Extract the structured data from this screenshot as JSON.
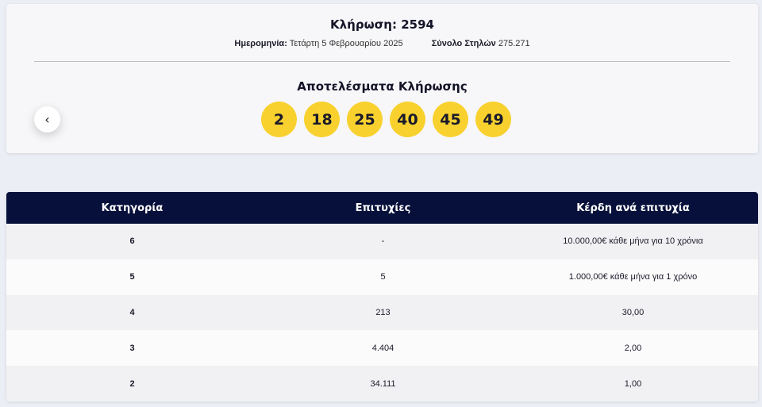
{
  "draw": {
    "title": "Κλήρωση: 2594",
    "date_label": "Ημερομηνία:",
    "date_value": "Τετάρτη 5 Φεβρουαρίου 2025",
    "columns_label": "Σύνολο Στηλών",
    "columns_value": "275.271",
    "results_title": "Αποτελέσματα Κλήρωσης",
    "prev_icon": "‹",
    "numbers": [
      "2",
      "18",
      "25",
      "40",
      "45",
      "49"
    ],
    "ball_color": "#f9d12e"
  },
  "table": {
    "headers": [
      "Κατηγορία",
      "Επιτυχίες",
      "Κέρδη ανά επιτυχία"
    ],
    "header_color": "#06103a",
    "rows": [
      [
        "6",
        "-",
        "10.000,00€ κάθε μήνα για 10 χρόνια"
      ],
      [
        "5",
        "5",
        "1.000,00€ κάθε μήνα για 1 χρόνο"
      ],
      [
        "4",
        "213",
        "30,00"
      ],
      [
        "3",
        "4.404",
        "2,00"
      ],
      [
        "2",
        "34.111",
        "1,00"
      ]
    ]
  }
}
